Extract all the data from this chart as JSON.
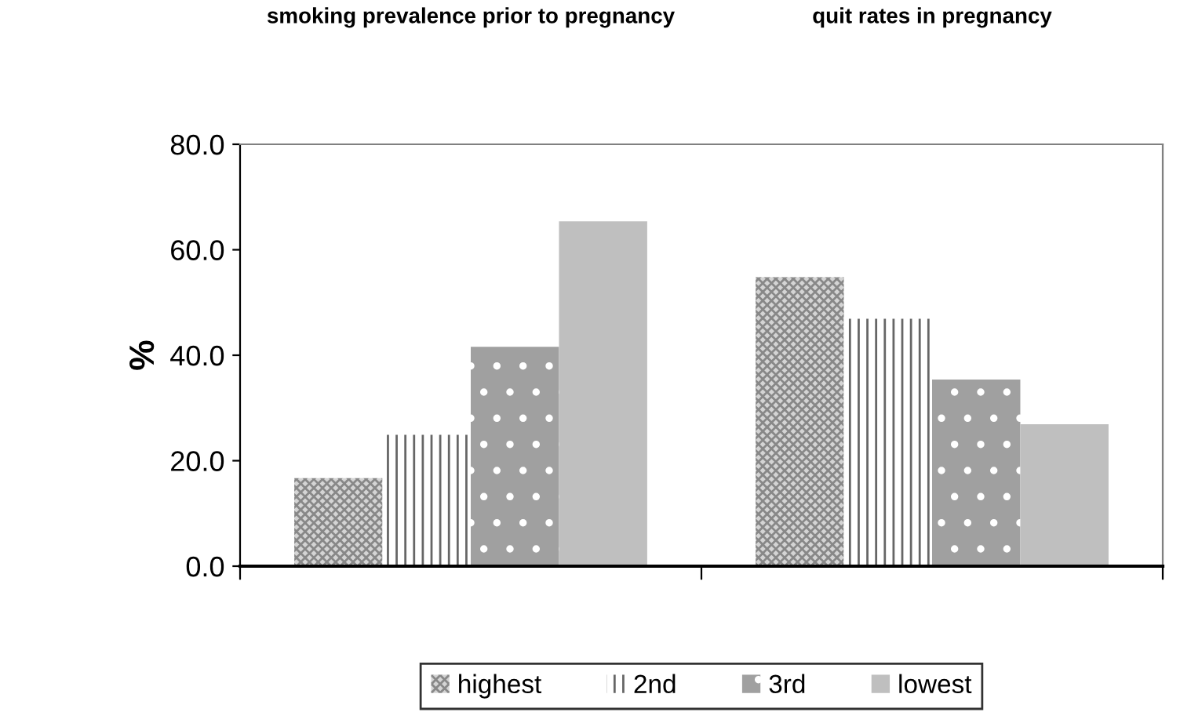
{
  "chart_data": {
    "type": "bar",
    "categories": [
      "smoking prevalence prior to pregnancy",
      "quit rates in pregnancy"
    ],
    "ylabel": "%",
    "series": [
      {
        "name": "highest",
        "color": "#d4d4d4",
        "values": [
          16.7,
          54.8
        ]
      },
      {
        "name": "2nd",
        "color": "#ffffff",
        "values": [
          24.9,
          46.9
        ]
      },
      {
        "name": "3rd",
        "color": "#a0a0a0",
        "values": [
          41.6,
          35.4
        ]
      },
      {
        "name": "lowest",
        "color": "#bfbfbf",
        "values": [
          65.4,
          26.9
        ]
      }
    ],
    "ylim": [
      0,
      80
    ],
    "yticks": [
      {
        "value": 0,
        "label": "0.0"
      },
      {
        "value": 20,
        "label": "20.0"
      },
      {
        "value": 40,
        "label": "40.0"
      },
      {
        "value": 60,
        "label": "60.0"
      },
      {
        "value": 80,
        "label": "80.0"
      }
    ],
    "grid": false,
    "legend": "bottom"
  }
}
